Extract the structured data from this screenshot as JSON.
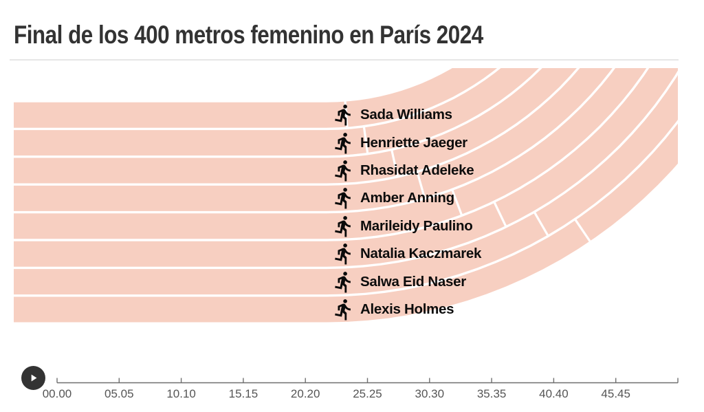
{
  "header": {
    "title": "Final de los 400 metros femenino en París 2024"
  },
  "controls": {
    "play_button": "play"
  },
  "chart_data": {
    "type": "race-track-animation",
    "title": "Final de los 400 metros femenino en París 2024",
    "description": "Stylized 8-lane athletics track (straight on the left curving up to the top right) with one runner pictogram per lane, all at the start position; time axis with play control below",
    "runners": [
      {
        "lane": 1,
        "name": "Sada Williams"
      },
      {
        "lane": 2,
        "name": "Henriette Jaeger"
      },
      {
        "lane": 3,
        "name": "Rhasidat Adeleke"
      },
      {
        "lane": 4,
        "name": "Amber Anning"
      },
      {
        "lane": 5,
        "name": "Marileidy Paulino"
      },
      {
        "lane": 6,
        "name": "Natalia Kaczmarek"
      },
      {
        "lane": 7,
        "name": "Salwa Eid Naser"
      },
      {
        "lane": 8,
        "name": "Alexis Holmes"
      }
    ],
    "time_axis": {
      "unit": "seconds",
      "tick_labels": [
        "00.00",
        "05.05",
        "10.10",
        "15.15",
        "20.20",
        "25.25",
        "30.30",
        "35.35",
        "40.40",
        "45.45"
      ],
      "end_tick_unlabeled": true,
      "current_time": "00.00"
    },
    "layout_hints": {
      "lanes": 8,
      "track_shape": "horizontal straight lanes bending into concentric arcs toward the top-right corner, with staggered white start lines per lane",
      "axis_position": "bottom",
      "play_button_position": "bottom-left",
      "grid": false,
      "legend": false
    },
    "colors": {
      "track": "#f7cfc1",
      "lane_divider": "#ffffff",
      "runner_icon": "#0a0a0a",
      "runner_name": "#0c0c0c",
      "title": "#333333",
      "axis_line": "#6f6f6f",
      "axis_label": "#555555",
      "play_button": "#333333",
      "play_glyph": "#ffffff",
      "background": "#ffffff"
    }
  }
}
